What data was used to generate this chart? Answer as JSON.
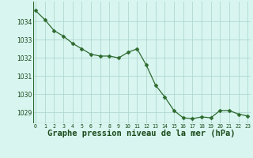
{
  "x": [
    0,
    1,
    2,
    3,
    4,
    5,
    6,
    7,
    8,
    9,
    10,
    11,
    12,
    13,
    14,
    15,
    16,
    17,
    18,
    19,
    20,
    21,
    22,
    23
  ],
  "y": [
    1034.6,
    1034.1,
    1033.5,
    1033.2,
    1032.8,
    1032.5,
    1032.2,
    1032.1,
    1032.1,
    1032.0,
    1032.3,
    1032.5,
    1031.6,
    1030.5,
    1029.85,
    1029.1,
    1028.7,
    1028.65,
    1028.75,
    1028.7,
    1029.1,
    1029.1,
    1028.9,
    1028.8
  ],
  "line_color": "#2d6a2d",
  "marker": "D",
  "marker_size": 2.5,
  "bg_color": "#d8f5f0",
  "grid_color": "#b0d8d0",
  "xlabel": "Graphe pression niveau de la mer (hPa)",
  "xlabel_fontsize": 7.5,
  "xlabel_color": "#1a4a1a",
  "tick_color": "#1a4a1a",
  "ylim": [
    1028.4,
    1035.1
  ],
  "xlim": [
    -0.3,
    23.3
  ],
  "yticks": [
    1029,
    1030,
    1031,
    1032,
    1033,
    1034
  ],
  "xtick_labels": [
    "0",
    "1",
    "2",
    "3",
    "4",
    "5",
    "6",
    "7",
    "8",
    "9",
    "10",
    "11",
    "12",
    "13",
    "14",
    "15",
    "16",
    "17",
    "18",
    "19",
    "20",
    "21",
    "22",
    "23"
  ]
}
